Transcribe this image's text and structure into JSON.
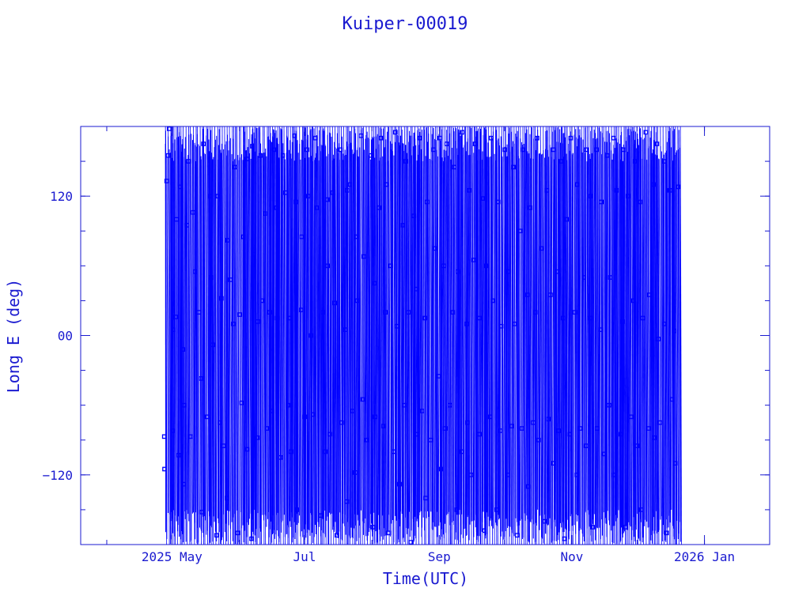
{
  "chart_data": {
    "type": "line",
    "title": "Kuiper-00019",
    "xlabel": "Time(UTC)",
    "ylabel": "Long E (deg)",
    "x_type": "date",
    "x_range": [
      "2025-03-20",
      "2026-01-31"
    ],
    "ylim": [
      -180,
      180
    ],
    "x_ticks": [
      {
        "date": "2025-05-01",
        "label": "2025 May"
      },
      {
        "date": "2025-07-01",
        "label": "Jul"
      },
      {
        "date": "2025-09-01",
        "label": "Sep"
      },
      {
        "date": "2025-11-01",
        "label": "Nov"
      },
      {
        "date": "2026-01-01",
        "label": "2026 Jan"
      }
    ],
    "y_ticks": [
      {
        "value": -120,
        "label": "−120"
      },
      {
        "value": 0,
        "label": "00"
      },
      {
        "value": 120,
        "label": "120"
      }
    ],
    "data_start": "2025-04-28",
    "data_end": "2025-12-20",
    "series": [
      {
        "color": "#0000ff",
        "marker": "square",
        "points": [
          [
            "2025-04-28",
            -87
          ],
          [
            "2025-04-28",
            -115
          ],
          [
            "2025-04-29",
            155
          ],
          [
            "2025-04-29",
            133
          ],
          [
            "2025-04-30",
            178
          ],
          [
            "2025-05-01",
            -82
          ],
          [
            "2025-05-02",
            16
          ],
          [
            "2025-05-02",
            5
          ],
          [
            "2025-05-03",
            100
          ],
          [
            "2025-05-04",
            -103
          ],
          [
            "2025-05-05",
            128
          ],
          [
            "2025-05-06",
            -12
          ],
          [
            "2025-05-06",
            -60
          ],
          [
            "2025-05-07",
            -128
          ],
          [
            "2025-05-08",
            95
          ],
          [
            "2025-05-09",
            150
          ],
          [
            "2025-05-10",
            -87
          ],
          [
            "2025-05-11",
            106
          ],
          [
            "2025-05-12",
            55
          ],
          [
            "2025-05-13",
            20
          ],
          [
            "2025-05-14",
            -152
          ],
          [
            "2025-05-15",
            -37
          ],
          [
            "2025-05-16",
            165
          ],
          [
            "2025-05-17",
            -70
          ],
          [
            "2025-05-18",
            120
          ],
          [
            "2025-05-19",
            50
          ],
          [
            "2025-05-20",
            -8
          ],
          [
            "2025-05-21",
            -172
          ],
          [
            "2025-05-22",
            120
          ],
          [
            "2025-05-23",
            -75
          ],
          [
            "2025-05-24",
            32
          ],
          [
            "2025-05-25",
            -95
          ],
          [
            "2025-05-26",
            82
          ],
          [
            "2025-05-27",
            -140
          ],
          [
            "2025-05-28",
            48
          ],
          [
            "2025-05-29",
            10
          ],
          [
            "2025-05-30",
            145
          ],
          [
            "2025-05-31",
            -170
          ],
          [
            "2025-06-01",
            18
          ],
          [
            "2025-06-02",
            -58
          ],
          [
            "2025-06-03",
            85
          ],
          [
            "2025-06-04",
            152
          ],
          [
            "2025-06-05",
            -98
          ],
          [
            "2025-06-06",
            -175
          ],
          [
            "2025-06-07",
            163
          ],
          [
            "2025-06-08",
            70
          ],
          [
            "2025-06-09",
            -88
          ],
          [
            "2025-06-10",
            12
          ],
          [
            "2025-06-11",
            155
          ],
          [
            "2025-06-12",
            30
          ],
          [
            "2025-06-13",
            105
          ],
          [
            "2025-06-14",
            -80
          ],
          [
            "2025-06-15",
            20
          ],
          [
            "2025-06-16",
            -65
          ],
          [
            "2025-06-17",
            160
          ],
          [
            "2025-06-18",
            110
          ],
          [
            "2025-06-19",
            15
          ],
          [
            "2025-06-20",
            -105
          ],
          [
            "2025-06-21",
            155
          ],
          [
            "2025-06-22",
            123
          ],
          [
            "2025-06-23",
            -60
          ],
          [
            "2025-06-24",
            15
          ],
          [
            "2025-06-25",
            -100
          ],
          [
            "2025-06-26",
            172
          ],
          [
            "2025-06-27",
            115
          ],
          [
            "2025-06-28",
            -150
          ],
          [
            "2025-06-29",
            85
          ],
          [
            "2025-06-30",
            22
          ],
          [
            "2025-07-01",
            -70
          ],
          [
            "2025-07-02",
            160
          ],
          [
            "2025-07-03",
            120
          ],
          [
            "2025-07-04",
            0
          ],
          [
            "2025-07-05",
            -68
          ],
          [
            "2025-07-06",
            170
          ],
          [
            "2025-07-07",
            110
          ],
          [
            "2025-07-08",
            -155
          ],
          [
            "2025-07-09",
            20
          ],
          [
            "2025-07-10",
            -100
          ],
          [
            "2025-07-11",
            117
          ],
          [
            "2025-07-12",
            60
          ],
          [
            "2025-07-13",
            -85
          ],
          [
            "2025-07-14",
            123
          ],
          [
            "2025-07-15",
            28
          ],
          [
            "2025-07-16",
            -172
          ],
          [
            "2025-07-17",
            160
          ],
          [
            "2025-07-18",
            -75
          ],
          [
            "2025-07-19",
            5
          ],
          [
            "2025-07-20",
            125
          ],
          [
            "2025-07-21",
            -143
          ],
          [
            "2025-07-22",
            130
          ],
          [
            "2025-07-23",
            -65
          ],
          [
            "2025-07-24",
            85
          ],
          [
            "2025-07-25",
            -118
          ],
          [
            "2025-07-26",
            30
          ],
          [
            "2025-07-27",
            172
          ],
          [
            "2025-07-28",
            -55
          ],
          [
            "2025-07-29",
            68
          ],
          [
            "2025-07-30",
            -90
          ],
          [
            "2025-07-31",
            155
          ],
          [
            "2025-08-01",
            -165
          ],
          [
            "2025-08-02",
            45
          ],
          [
            "2025-08-03",
            -70
          ],
          [
            "2025-08-04",
            110
          ],
          [
            "2025-08-05",
            170
          ],
          [
            "2025-08-06",
            -78
          ],
          [
            "2025-08-07",
            20
          ],
          [
            "2025-08-08",
            130
          ],
          [
            "2025-08-09",
            -170
          ],
          [
            "2025-08-10",
            60
          ],
          [
            "2025-08-11",
            -100
          ],
          [
            "2025-08-12",
            175
          ],
          [
            "2025-08-13",
            8
          ],
          [
            "2025-08-14",
            -128
          ],
          [
            "2025-08-15",
            95
          ],
          [
            "2025-08-16",
            -60
          ],
          [
            "2025-08-17",
            150
          ],
          [
            "2025-08-18",
            20
          ],
          [
            "2025-08-19",
            -178
          ],
          [
            "2025-08-20",
            103
          ],
          [
            "2025-08-21",
            -85
          ],
          [
            "2025-08-22",
            40
          ],
          [
            "2025-08-23",
            170
          ],
          [
            "2025-08-24",
            -65
          ],
          [
            "2025-08-25",
            15
          ],
          [
            "2025-08-26",
            -140
          ],
          [
            "2025-08-27",
            115
          ],
          [
            "2025-08-28",
            -90
          ],
          [
            "2025-08-29",
            160
          ],
          [
            "2025-08-30",
            75
          ],
          [
            "2025-08-31",
            -35
          ],
          [
            "2025-09-01",
            170
          ],
          [
            "2025-09-02",
            -115
          ],
          [
            "2025-09-03",
            60
          ],
          [
            "2025-09-04",
            -80
          ],
          [
            "2025-09-05",
            165
          ],
          [
            "2025-09-06",
            -60
          ],
          [
            "2025-09-07",
            20
          ],
          [
            "2025-09-08",
            145
          ],
          [
            "2025-09-09",
            -150
          ],
          [
            "2025-09-10",
            55
          ],
          [
            "2025-09-11",
            -100
          ],
          [
            "2025-09-12",
            175
          ],
          [
            "2025-09-13",
            10
          ],
          [
            "2025-09-14",
            -75
          ],
          [
            "2025-09-15",
            125
          ],
          [
            "2025-09-16",
            -120
          ],
          [
            "2025-09-17",
            65
          ],
          [
            "2025-09-18",
            165
          ],
          [
            "2025-09-19",
            -85
          ],
          [
            "2025-09-20",
            15
          ],
          [
            "2025-09-21",
            118
          ],
          [
            "2025-09-22",
            -168
          ],
          [
            "2025-09-23",
            60
          ],
          [
            "2025-09-24",
            -70
          ],
          [
            "2025-09-25",
            170
          ],
          [
            "2025-09-26",
            30
          ],
          [
            "2025-09-27",
            -150
          ],
          [
            "2025-09-28",
            115
          ],
          [
            "2025-09-29",
            -82
          ],
          [
            "2025-09-30",
            8
          ],
          [
            "2025-10-01",
            160
          ],
          [
            "2025-10-02",
            -120
          ],
          [
            "2025-10-03",
            55
          ],
          [
            "2025-10-04",
            -78
          ],
          [
            "2025-10-05",
            145
          ],
          [
            "2025-10-06",
            10
          ],
          [
            "2025-10-07",
            -172
          ],
          [
            "2025-10-08",
            90
          ],
          [
            "2025-10-09",
            -80
          ],
          [
            "2025-10-10",
            160
          ],
          [
            "2025-10-11",
            35
          ],
          [
            "2025-10-12",
            -130
          ],
          [
            "2025-10-13",
            110
          ],
          [
            "2025-10-14",
            -75
          ],
          [
            "2025-10-15",
            20
          ],
          [
            "2025-10-16",
            170
          ],
          [
            "2025-10-17",
            -90
          ],
          [
            "2025-10-18",
            75
          ],
          [
            "2025-10-19",
            -160
          ],
          [
            "2025-10-20",
            125
          ],
          [
            "2025-10-21",
            -72
          ],
          [
            "2025-10-22",
            35
          ],
          [
            "2025-10-23",
            160
          ],
          [
            "2025-10-24",
            -110
          ],
          [
            "2025-10-25",
            55
          ],
          [
            "2025-10-26",
            -82
          ],
          [
            "2025-10-27",
            150
          ],
          [
            "2025-10-28",
            15
          ],
          [
            "2025-10-29",
            -175
          ],
          [
            "2025-10-30",
            100
          ],
          [
            "2025-10-31",
            -85
          ],
          [
            "2025-11-01",
            170
          ],
          [
            "2025-11-02",
            20
          ],
          [
            "2025-11-03",
            -120
          ],
          [
            "2025-11-04",
            130
          ],
          [
            "2025-11-05",
            -80
          ],
          [
            "2025-11-06",
            50
          ],
          [
            "2025-11-07",
            160
          ],
          [
            "2025-11-08",
            -95
          ],
          [
            "2025-11-09",
            15
          ],
          [
            "2025-11-10",
            120
          ],
          [
            "2025-11-11",
            -165
          ],
          [
            "2025-11-12",
            160
          ],
          [
            "2025-11-13",
            -80
          ],
          [
            "2025-11-14",
            5
          ],
          [
            "2025-11-15",
            115
          ],
          [
            "2025-11-16",
            -102
          ],
          [
            "2025-11-17",
            155
          ],
          [
            "2025-11-18",
            -60
          ],
          [
            "2025-11-19",
            50
          ],
          [
            "2025-11-20",
            170
          ],
          [
            "2025-11-21",
            -120
          ],
          [
            "2025-11-22",
            125
          ],
          [
            "2025-11-23",
            -85
          ],
          [
            "2025-11-24",
            12
          ],
          [
            "2025-11-25",
            160
          ],
          [
            "2025-11-26",
            -165
          ],
          [
            "2025-11-27",
            120
          ],
          [
            "2025-11-28",
            -70
          ],
          [
            "2025-11-29",
            30
          ],
          [
            "2025-11-30",
            150
          ],
          [
            "2025-12-01",
            -95
          ],
          [
            "2025-12-02",
            115
          ],
          [
            "2025-12-03",
            -150
          ],
          [
            "2025-12-04",
            15
          ],
          [
            "2025-12-05",
            175
          ],
          [
            "2025-12-06",
            -80
          ],
          [
            "2025-12-07",
            35
          ],
          [
            "2025-12-08",
            130
          ],
          [
            "2025-12-09",
            -88
          ],
          [
            "2025-12-10",
            165
          ],
          [
            "2025-12-11",
            -3
          ],
          [
            "2025-12-12",
            -75
          ],
          [
            "2025-12-13",
            150
          ],
          [
            "2025-12-14",
            10
          ],
          [
            "2025-12-15",
            -170
          ],
          [
            "2025-12-16",
            125
          ],
          [
            "2025-12-17",
            -55
          ],
          [
            "2025-12-18",
            4
          ],
          [
            "2025-12-19",
            -110
          ],
          [
            "2025-12-20",
            128
          ]
        ]
      }
    ]
  }
}
